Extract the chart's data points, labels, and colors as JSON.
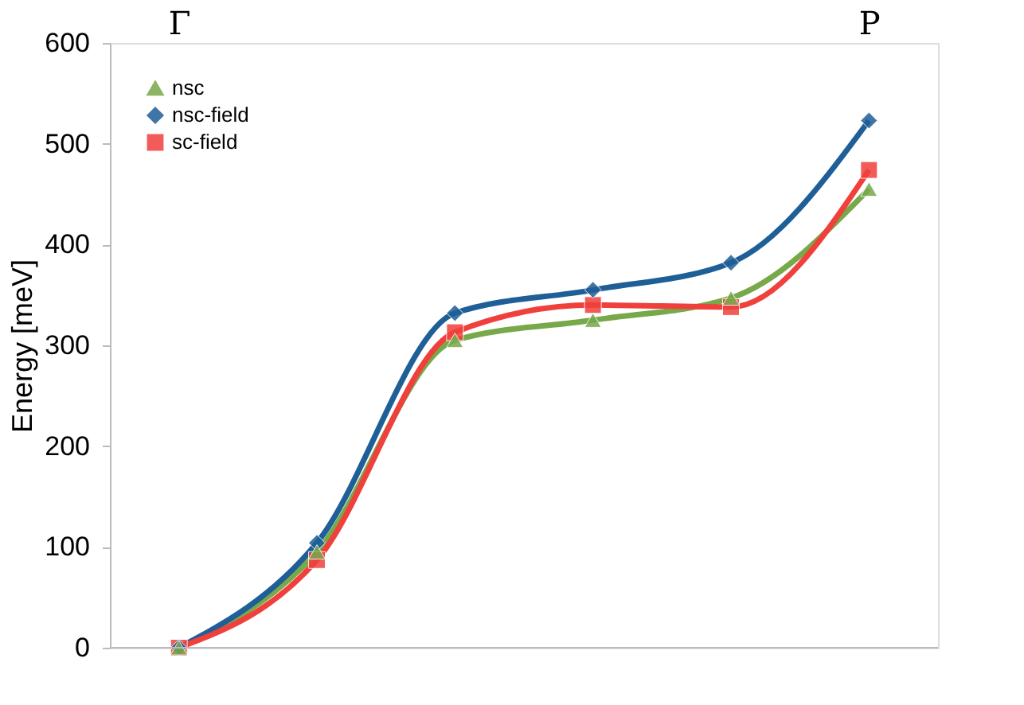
{
  "chart_data": {
    "type": "line",
    "ylabel": "Energy [meV]",
    "categories": [
      "Γ",
      null,
      null,
      null,
      null,
      "P"
    ],
    "ylim": [
      0,
      600
    ],
    "yticks": [
      0,
      100,
      200,
      300,
      400,
      500,
      600
    ],
    "grid": false,
    "legend": "top left",
    "line_style": "solid",
    "series": [
      {
        "name": "nsc",
        "color": "#77a94a",
        "marker": "triangle",
        "values": [
          0,
          95,
          305,
          325,
          347,
          455
        ]
      },
      {
        "name": "nsc-field",
        "color": "#1f5f97",
        "marker": "diamond",
        "values": [
          0,
          104,
          332,
          355,
          382,
          523
        ]
      },
      {
        "name": "sc-field",
        "color": "#f0403c",
        "marker": "square",
        "values": [
          0,
          87,
          313,
          340,
          338,
          474
        ]
      }
    ]
  }
}
